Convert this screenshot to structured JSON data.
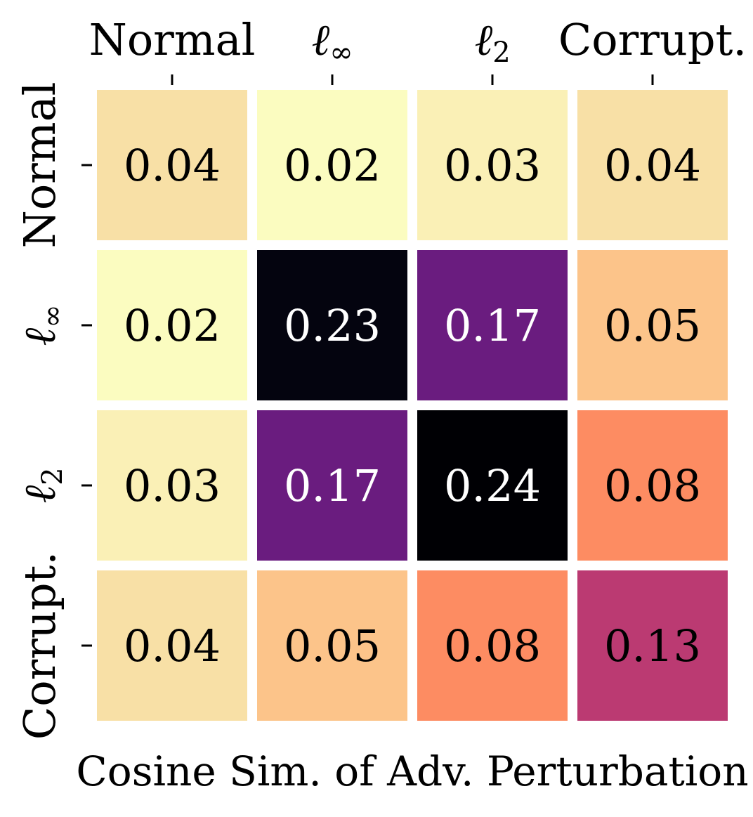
{
  "chart_data": {
    "type": "heatmap",
    "title": "",
    "xlabel": "Cosine Sim. of Adv. Perturbation",
    "ylabel": "",
    "x_categories": [
      {
        "main": "Normal",
        "sub": ""
      },
      {
        "main": "ℓ",
        "sub": "∞"
      },
      {
        "main": "ℓ",
        "sub": "2"
      },
      {
        "main": "Corrupt.",
        "sub": ""
      }
    ],
    "y_categories": [
      {
        "main": "Normal",
        "sub": ""
      },
      {
        "main": "ℓ",
        "sub": "∞"
      },
      {
        "main": "ℓ",
        "sub": "2"
      },
      {
        "main": "Corrupt.",
        "sub": ""
      }
    ],
    "values": [
      [
        0.04,
        0.02,
        0.03,
        0.04
      ],
      [
        0.02,
        0.23,
        0.17,
        0.05
      ],
      [
        0.03,
        0.17,
        0.24,
        0.08
      ],
      [
        0.04,
        0.05,
        0.08,
        0.13
      ]
    ],
    "value_labels": [
      [
        "0.04",
        "0.02",
        "0.03",
        "0.04"
      ],
      [
        "0.02",
        "0.23",
        "0.17",
        "0.05"
      ],
      [
        "0.03",
        "0.17",
        "0.24",
        "0.08"
      ],
      [
        "0.04",
        "0.05",
        "0.08",
        "0.13"
      ]
    ],
    "colormap": "magma_r",
    "colorbar": false,
    "cell_colors": [
      [
        "#f8e0a6",
        "#fbfcc0",
        "#faf0b6",
        "#f8e0a6"
      ],
      [
        "#fbfcc0",
        "#04040f",
        "#6a1c7f",
        "#fcc48a"
      ],
      [
        "#faf0b6",
        "#6a1c7f",
        "#000004",
        "#fd8c62"
      ],
      [
        "#f8e0a6",
        "#fcc48a",
        "#fd8c62",
        "#bb3a72"
      ]
    ],
    "text_colors": [
      [
        "#000000",
        "#000000",
        "#000000",
        "#000000"
      ],
      [
        "#000000",
        "#ffffff",
        "#ffffff",
        "#000000"
      ],
      [
        "#000000",
        "#ffffff",
        "#ffffff",
        "#000000"
      ],
      [
        "#000000",
        "#000000",
        "#000000",
        "#000000"
      ]
    ]
  }
}
